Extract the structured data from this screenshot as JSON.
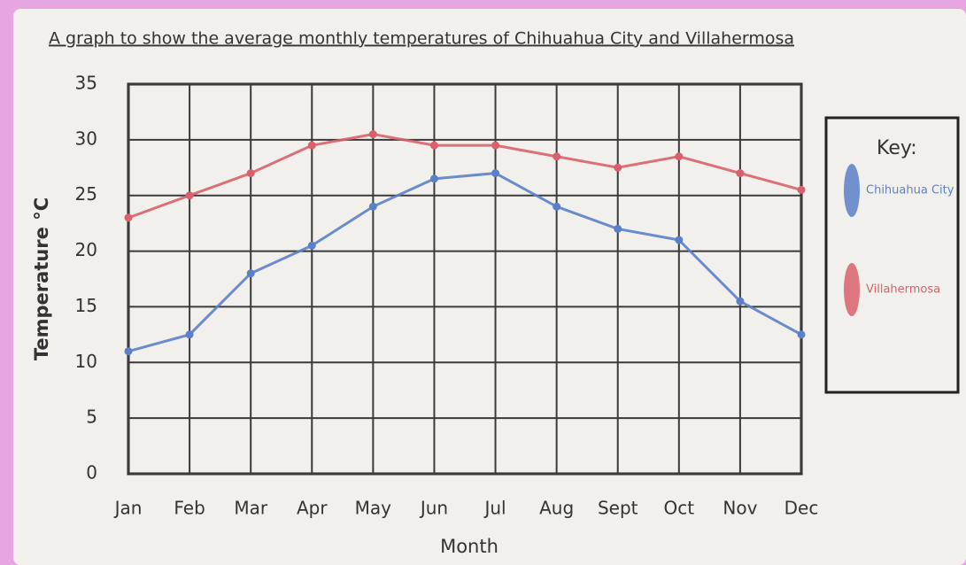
{
  "chart_data": {
    "type": "line",
    "title": "A graph to show the average monthly temperatures of Chihuahua City and Villahermosa",
    "x_label": "Month",
    "y_label": "Temperature °C",
    "categories": [
      "Jan",
      "Feb",
      "Mar",
      "Apr",
      "May",
      "Jun",
      "Jul",
      "Aug",
      "Sept",
      "Oct",
      "Nov",
      "Dec"
    ],
    "series": [
      {
        "name": "Chihuahua City",
        "color": "#5b7fc9",
        "values": [
          11,
          12.5,
          18,
          20.5,
          24,
          26.5,
          27,
          24,
          22,
          21,
          15.5,
          12.5
        ]
      },
      {
        "name": "Villahermosa",
        "color": "#d9606c",
        "values": [
          23,
          25,
          27,
          29.5,
          30.5,
          29.5,
          29.5,
          28.5,
          27.5,
          28.5,
          27,
          25.5
        ]
      }
    ],
    "ylim": [
      0,
      35
    ],
    "yticks": [
      0,
      5,
      10,
      15,
      20,
      25,
      30,
      35
    ],
    "grid": true,
    "legend_title": "Key:"
  }
}
